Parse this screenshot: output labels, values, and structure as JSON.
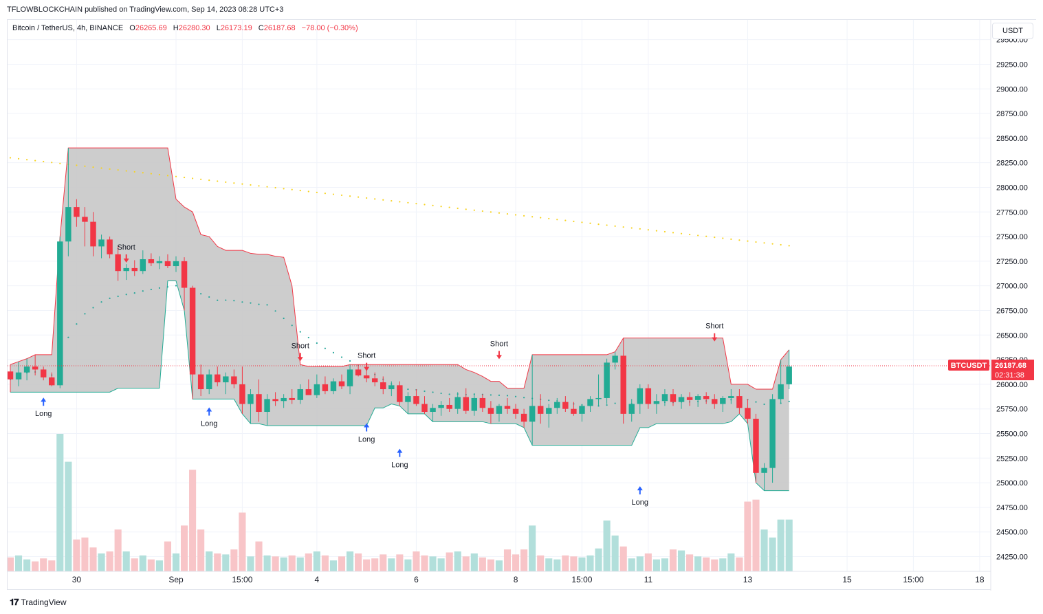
{
  "header": {
    "publisher": "TFLOWBLOCKCHAIN published on TradingView.com, Sep 14, 2023 08:28 UTC+3",
    "symbol": "Bitcoin / TetherUS, 4h, BINANCE",
    "open_label": "O",
    "open": "26265.69",
    "high_label": "H",
    "high": "26280.30",
    "low_label": "L",
    "low": "26173.19",
    "close_label": "C",
    "close": "26187.68",
    "change": "−78.00 (−0.30%)",
    "currency_button": "USDT"
  },
  "footer": {
    "logo": "TradingView"
  },
  "colors": {
    "up": "#22ab94",
    "down": "#f23645",
    "yellow": "#f7d321",
    "teal": "#26a69a",
    "blue": "#2962ff",
    "box": "#c8c8c8"
  },
  "chart_data": {
    "type": "candlestick",
    "price_axis": {
      "min": 24100,
      "max": 29700,
      "ticks": [
        "29500.00",
        "29250.00",
        "29000.00",
        "28750.00",
        "28500.00",
        "28250.00",
        "28000.00",
        "27750.00",
        "27500.00",
        "27250.00",
        "27000.00",
        "26750.00",
        "26500.00",
        "26250.00",
        "26000.00",
        "25750.00",
        "25500.00",
        "25250.00",
        "25000.00",
        "24750.00",
        "24500.00",
        "24250.00"
      ]
    },
    "time_axis": {
      "bar_count": 95,
      "ticks": [
        {
          "label": "30",
          "bar": 8
        },
        {
          "label": "Sep",
          "bar": 20
        },
        {
          "label": "15:00",
          "bar": 28
        },
        {
          "label": "4",
          "bar": 37
        },
        {
          "label": "6",
          "bar": 49
        },
        {
          "label": "8",
          "bar": 61
        },
        {
          "label": "15:00",
          "bar": 69
        },
        {
          "label": "11",
          "bar": 77
        },
        {
          "label": "13",
          "bar": 89
        },
        {
          "label": "15",
          "bar": 101
        },
        {
          "label": "15:00",
          "bar": 109
        },
        {
          "label": "18",
          "bar": 117
        }
      ]
    },
    "last_price": {
      "symbol": "BTCUSDT",
      "price": "26187.68",
      "countdown": "02:31:38"
    },
    "candles": [
      {
        "o": 26130,
        "h": 26200,
        "l": 25920,
        "c": 26050,
        "v": 140
      },
      {
        "o": 26050,
        "h": 26230,
        "l": 25980,
        "c": 26120,
        "v": 160
      },
      {
        "o": 26120,
        "h": 26260,
        "l": 26040,
        "c": 26180,
        "v": 120
      },
      {
        "o": 26180,
        "h": 26300,
        "l": 26090,
        "c": 26150,
        "v": 100
      },
      {
        "o": 26150,
        "h": 26180,
        "l": 26040,
        "c": 26070,
        "v": 130
      },
      {
        "o": 26070,
        "h": 26120,
        "l": 25980,
        "c": 25990,
        "v": 110
      },
      {
        "o": 25990,
        "h": 27500,
        "l": 25960,
        "c": 27450,
        "v": 1380
      },
      {
        "o": 27450,
        "h": 28400,
        "l": 27300,
        "c": 27800,
        "v": 1100
      },
      {
        "o": 27800,
        "h": 27880,
        "l": 27600,
        "c": 27700,
        "v": 320
      },
      {
        "o": 27700,
        "h": 27800,
        "l": 27400,
        "c": 27650,
        "v": 340
      },
      {
        "o": 27650,
        "h": 27750,
        "l": 27300,
        "c": 27400,
        "v": 240
      },
      {
        "o": 27400,
        "h": 27520,
        "l": 27280,
        "c": 27470,
        "v": 180
      },
      {
        "o": 27470,
        "h": 27500,
        "l": 27280,
        "c": 27320,
        "v": 200
      },
      {
        "o": 27320,
        "h": 27400,
        "l": 27050,
        "c": 27150,
        "v": 420
      },
      {
        "o": 27150,
        "h": 27220,
        "l": 27060,
        "c": 27180,
        "v": 200
      },
      {
        "o": 27180,
        "h": 27260,
        "l": 27100,
        "c": 27150,
        "v": 130
      },
      {
        "o": 27150,
        "h": 27360,
        "l": 27120,
        "c": 27270,
        "v": 160
      },
      {
        "o": 27270,
        "h": 27330,
        "l": 27200,
        "c": 27230,
        "v": 120
      },
      {
        "o": 27230,
        "h": 27300,
        "l": 27170,
        "c": 27250,
        "v": 110
      },
      {
        "o": 27250,
        "h": 27320,
        "l": 27180,
        "c": 27200,
        "v": 300
      },
      {
        "o": 27200,
        "h": 27300,
        "l": 27140,
        "c": 27250,
        "v": 180
      },
      {
        "o": 27250,
        "h": 27290,
        "l": 26750,
        "c": 26980,
        "v": 460
      },
      {
        "o": 26980,
        "h": 27000,
        "l": 25850,
        "c": 26100,
        "v": 1020
      },
      {
        "o": 26100,
        "h": 26200,
        "l": 25880,
        "c": 25950,
        "v": 420
      },
      {
        "o": 25950,
        "h": 26150,
        "l": 25900,
        "c": 26100,
        "v": 200
      },
      {
        "o": 26100,
        "h": 26180,
        "l": 25980,
        "c": 26020,
        "v": 180
      },
      {
        "o": 26020,
        "h": 26120,
        "l": 25900,
        "c": 26080,
        "v": 170
      },
      {
        "o": 26080,
        "h": 26150,
        "l": 25960,
        "c": 26000,
        "v": 220
      },
      {
        "o": 26000,
        "h": 26180,
        "l": 25700,
        "c": 25800,
        "v": 590
      },
      {
        "o": 25800,
        "h": 25950,
        "l": 25600,
        "c": 25900,
        "v": 150
      },
      {
        "o": 25900,
        "h": 26050,
        "l": 25620,
        "c": 25720,
        "v": 300
      },
      {
        "o": 25720,
        "h": 25900,
        "l": 25580,
        "c": 25850,
        "v": 160
      },
      {
        "o": 25850,
        "h": 25920,
        "l": 25780,
        "c": 25830,
        "v": 150
      },
      {
        "o": 25830,
        "h": 25900,
        "l": 25760,
        "c": 25860,
        "v": 140
      },
      {
        "o": 25860,
        "h": 25950,
        "l": 25800,
        "c": 25840,
        "v": 160
      },
      {
        "o": 25840,
        "h": 26000,
        "l": 25800,
        "c": 25950,
        "v": 140
      },
      {
        "o": 25950,
        "h": 26050,
        "l": 25900,
        "c": 25890,
        "v": 180
      },
      {
        "o": 25890,
        "h": 26100,
        "l": 25860,
        "c": 26000,
        "v": 200
      },
      {
        "o": 26000,
        "h": 26080,
        "l": 25900,
        "c": 25930,
        "v": 160
      },
      {
        "o": 25930,
        "h": 26060,
        "l": 25900,
        "c": 26030,
        "v": 110
      },
      {
        "o": 26030,
        "h": 26100,
        "l": 25950,
        "c": 25980,
        "v": 150
      },
      {
        "o": 25980,
        "h": 26200,
        "l": 25900,
        "c": 26150,
        "v": 200
      },
      {
        "o": 26150,
        "h": 26200,
        "l": 26080,
        "c": 26090,
        "v": 180
      },
      {
        "o": 26090,
        "h": 26150,
        "l": 26020,
        "c": 26060,
        "v": 120
      },
      {
        "o": 26060,
        "h": 26120,
        "l": 25980,
        "c": 26020,
        "v": 130
      },
      {
        "o": 26020,
        "h": 26080,
        "l": 25900,
        "c": 25950,
        "v": 170
      },
      {
        "o": 25950,
        "h": 26030,
        "l": 25880,
        "c": 25990,
        "v": 130
      },
      {
        "o": 25990,
        "h": 26030,
        "l": 25780,
        "c": 25820,
        "v": 170
      },
      {
        "o": 25820,
        "h": 25920,
        "l": 25700,
        "c": 25880,
        "v": 120
      },
      {
        "o": 25880,
        "h": 25950,
        "l": 25780,
        "c": 25800,
        "v": 200
      },
      {
        "o": 25800,
        "h": 25880,
        "l": 25700,
        "c": 25720,
        "v": 160
      },
      {
        "o": 25720,
        "h": 25800,
        "l": 25620,
        "c": 25760,
        "v": 150
      },
      {
        "o": 25760,
        "h": 25830,
        "l": 25680,
        "c": 25790,
        "v": 130
      },
      {
        "o": 25790,
        "h": 25860,
        "l": 25720,
        "c": 25750,
        "v": 190
      },
      {
        "o": 25750,
        "h": 25920,
        "l": 25700,
        "c": 25870,
        "v": 200
      },
      {
        "o": 25870,
        "h": 25960,
        "l": 25700,
        "c": 25730,
        "v": 150
      },
      {
        "o": 25730,
        "h": 25900,
        "l": 25680,
        "c": 25860,
        "v": 180
      },
      {
        "o": 25860,
        "h": 25900,
        "l": 25720,
        "c": 25760,
        "v": 140
      },
      {
        "o": 25760,
        "h": 25830,
        "l": 25600,
        "c": 25700,
        "v": 120
      },
      {
        "o": 25700,
        "h": 25800,
        "l": 25620,
        "c": 25780,
        "v": 110
      },
      {
        "o": 25780,
        "h": 25860,
        "l": 25700,
        "c": 25750,
        "v": 220
      },
      {
        "o": 25750,
        "h": 25800,
        "l": 25650,
        "c": 25700,
        "v": 170
      },
      {
        "o": 25700,
        "h": 25750,
        "l": 25560,
        "c": 25620,
        "v": 220
      },
      {
        "o": 25620,
        "h": 26300,
        "l": 25380,
        "c": 25780,
        "v": 460
      },
      {
        "o": 25780,
        "h": 25900,
        "l": 25600,
        "c": 25700,
        "v": 160
      },
      {
        "o": 25700,
        "h": 25800,
        "l": 25560,
        "c": 25760,
        "v": 130
      },
      {
        "o": 25760,
        "h": 25860,
        "l": 25700,
        "c": 25820,
        "v": 120
      },
      {
        "o": 25820,
        "h": 25880,
        "l": 25720,
        "c": 25750,
        "v": 160
      },
      {
        "o": 25750,
        "h": 25820,
        "l": 25680,
        "c": 25700,
        "v": 150
      },
      {
        "o": 25700,
        "h": 25800,
        "l": 25620,
        "c": 25780,
        "v": 140
      },
      {
        "o": 25780,
        "h": 25880,
        "l": 25720,
        "c": 25850,
        "v": 160
      },
      {
        "o": 25850,
        "h": 26100,
        "l": 25780,
        "c": 25860,
        "v": 230
      },
      {
        "o": 25860,
        "h": 26260,
        "l": 25800,
        "c": 26220,
        "v": 510
      },
      {
        "o": 26220,
        "h": 26330,
        "l": 26150,
        "c": 26290,
        "v": 360
      },
      {
        "o": 26290,
        "h": 26470,
        "l": 25600,
        "c": 25700,
        "v": 250
      },
      {
        "o": 25700,
        "h": 25850,
        "l": 25620,
        "c": 25800,
        "v": 130
      },
      {
        "o": 25800,
        "h": 26000,
        "l": 25700,
        "c": 25960,
        "v": 150
      },
      {
        "o": 25960,
        "h": 26000,
        "l": 25750,
        "c": 25800,
        "v": 180
      },
      {
        "o": 25800,
        "h": 25900,
        "l": 25700,
        "c": 25830,
        "v": 120
      },
      {
        "o": 25830,
        "h": 25950,
        "l": 25780,
        "c": 25900,
        "v": 130
      },
      {
        "o": 25900,
        "h": 25950,
        "l": 25780,
        "c": 25820,
        "v": 220
      },
      {
        "o": 25820,
        "h": 25900,
        "l": 25750,
        "c": 25870,
        "v": 210
      },
      {
        "o": 25870,
        "h": 25920,
        "l": 25780,
        "c": 25840,
        "v": 170
      },
      {
        "o": 25840,
        "h": 25900,
        "l": 25770,
        "c": 25880,
        "v": 150
      },
      {
        "o": 25880,
        "h": 25920,
        "l": 25800,
        "c": 25850,
        "v": 140
      },
      {
        "o": 25850,
        "h": 25900,
        "l": 25750,
        "c": 25800,
        "v": 120
      },
      {
        "o": 25800,
        "h": 25880,
        "l": 25720,
        "c": 25860,
        "v": 130
      },
      {
        "o": 25860,
        "h": 25950,
        "l": 25800,
        "c": 25880,
        "v": 180
      },
      {
        "o": 25880,
        "h": 25950,
        "l": 25700,
        "c": 25760,
        "v": 140
      },
      {
        "o": 25760,
        "h": 25850,
        "l": 25600,
        "c": 25650,
        "v": 700
      },
      {
        "o": 25650,
        "h": 25700,
        "l": 25000,
        "c": 25100,
        "v": 720
      },
      {
        "o": 25100,
        "h": 25200,
        "l": 24920,
        "c": 25150,
        "v": 420
      },
      {
        "o": 25150,
        "h": 25900,
        "l": 25000,
        "c": 25850,
        "v": 340
      },
      {
        "o": 25850,
        "h": 26250,
        "l": 25800,
        "c": 26000,
        "v": 520
      },
      {
        "o": 26000,
        "h": 26350,
        "l": 25950,
        "c": 26180,
        "v": 520
      }
    ],
    "labels": [
      {
        "text": "Long",
        "bar": 4,
        "side": "below",
        "price": 25900
      },
      {
        "text": "Short",
        "bar": 14,
        "side": "above",
        "price": 27200
      },
      {
        "text": "Long",
        "bar": 24,
        "side": "below",
        "price": 25800
      },
      {
        "text": "Short",
        "bar": 35,
        "side": "above",
        "price": 26200
      },
      {
        "text": "Long",
        "bar": 43,
        "side": "below",
        "price": 25640
      },
      {
        "text": "Short",
        "bar": 43,
        "side": "above",
        "price": 26100
      },
      {
        "text": "Long",
        "bar": 47,
        "side": "below",
        "price": 25380
      },
      {
        "text": "Short",
        "bar": 59,
        "side": "above",
        "price": 26220
      },
      {
        "text": "Long",
        "bar": 76,
        "side": "below",
        "price": 25000
      },
      {
        "text": "Short",
        "bar": 85,
        "side": "above",
        "price": 26400
      }
    ]
  }
}
